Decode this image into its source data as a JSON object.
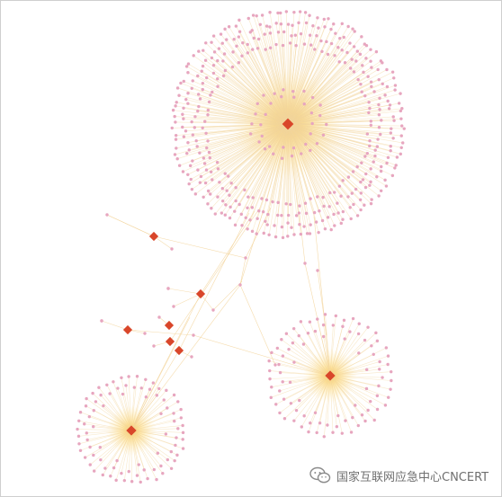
{
  "watermark": {
    "text": "国家互联网应急中心CNCERT",
    "icon": "wechat-icon"
  },
  "colors": {
    "background": "#ffffff",
    "border": "#cfcfcf",
    "hub": "#d9462a",
    "leaf": "#e7a6bf",
    "edge": "#f3d59c",
    "glow": "#ffc21a",
    "watermark": "#6f6f6f"
  },
  "graph": {
    "description_type": "network",
    "clusters": [
      {
        "id": "large",
        "leaf_count": 400
      },
      {
        "id": "bottom-right",
        "leaf_count": 90
      },
      {
        "id": "bottom-left",
        "leaf_count": 85
      }
    ],
    "isolated_hubs": 6
  }
}
